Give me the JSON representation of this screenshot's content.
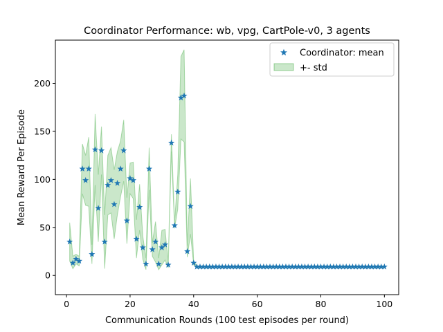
{
  "chart_data": {
    "type": "line",
    "title": "Coordinator Performance: wb, vpg, CartPole-v0, 3 agents",
    "xlabel": "Communication Rounds (100 test episodes per round)",
    "ylabel": "Mean Reward Per Episode",
    "xlim": [
      -3.5,
      104.5
    ],
    "ylim": [
      -20,
      245
    ],
    "x_ticks": [
      0,
      20,
      40,
      60,
      80,
      100
    ],
    "y_ticks": [
      0,
      50,
      100,
      150,
      200
    ],
    "legend_position": "top-right",
    "grid": false,
    "legend": {
      "mean_label": "Coordinator: mean",
      "std_label": "+- std"
    },
    "colors": {
      "mean": "#1f77b4",
      "band_fill": "#2ca02c",
      "band_edge": "#2ca02c"
    },
    "x": [
      1,
      2,
      3,
      4,
      5,
      6,
      7,
      8,
      9,
      10,
      11,
      12,
      13,
      14,
      15,
      16,
      17,
      18,
      19,
      20,
      21,
      22,
      23,
      24,
      25,
      26,
      27,
      28,
      29,
      30,
      31,
      32,
      33,
      34,
      35,
      36,
      37,
      38,
      39,
      40,
      41,
      42,
      43,
      44,
      45,
      46,
      47,
      48,
      49,
      50,
      51,
      52,
      53,
      54,
      55,
      56,
      57,
      58,
      59,
      60,
      61,
      62,
      63,
      64,
      65,
      66,
      67,
      68,
      69,
      70,
      71,
      72,
      73,
      74,
      75,
      76,
      77,
      78,
      79,
      80,
      81,
      82,
      83,
      84,
      85,
      86,
      87,
      88,
      89,
      90,
      91,
      92,
      93,
      94,
      95,
      96,
      97,
      98,
      99,
      100
    ],
    "series": [
      {
        "name": "Coordinator: mean",
        "values": [
          35,
          13,
          17,
          15,
          111,
          99,
          111,
          22,
          131,
          70,
          130,
          35,
          94,
          99,
          74,
          96,
          111,
          130,
          57,
          101,
          99,
          38,
          71,
          29,
          12,
          111,
          27,
          35,
          12,
          29,
          32,
          11,
          138,
          52,
          87,
          185,
          187,
          25,
          72,
          13,
          9,
          9,
          9,
          9,
          9,
          9,
          9,
          9,
          9,
          9,
          9,
          9,
          9,
          9,
          9,
          9,
          9,
          9,
          9,
          9,
          9,
          9,
          9,
          9,
          9,
          9,
          9,
          9,
          9,
          9,
          9,
          9,
          9,
          9,
          9,
          9,
          9,
          9,
          9,
          9,
          9,
          9,
          9,
          9,
          9,
          9,
          9,
          9,
          9,
          9,
          9,
          9,
          9,
          9,
          9,
          9,
          9,
          9,
          9,
          9
        ]
      },
      {
        "name": "+- std",
        "upper": [
          55,
          20,
          22,
          20,
          137,
          125,
          144,
          32,
          168,
          105,
          155,
          63,
          125,
          133,
          110,
          129,
          140,
          162,
          81,
          117,
          118,
          58,
          95,
          41,
          18,
          133,
          34,
          56,
          18,
          47,
          48,
          14,
          147,
          55,
          105,
          228,
          235,
          31,
          101,
          15,
          10,
          10,
          10,
          10,
          10,
          10,
          10,
          10,
          10,
          10,
          10,
          10,
          10,
          10,
          10,
          10,
          10,
          10,
          10,
          10,
          10,
          10,
          10,
          10,
          10,
          10,
          10,
          10,
          10,
          10,
          10,
          10,
          10,
          10,
          10,
          10,
          10,
          10,
          10,
          10,
          10,
          10,
          10,
          10,
          10,
          10,
          10,
          10,
          10,
          10,
          10,
          10,
          10,
          10,
          10,
          10,
          10,
          10,
          10,
          10
        ],
        "lower": [
          15,
          7,
          12,
          10,
          85,
          73,
          72,
          12,
          94,
          35,
          105,
          7,
          63,
          65,
          38,
          63,
          82,
          98,
          33,
          85,
          80,
          18,
          47,
          17,
          6,
          89,
          20,
          14,
          6,
          11,
          16,
          8,
          129,
          49,
          69,
          142,
          139,
          19,
          43,
          11,
          8,
          8,
          8,
          8,
          8,
          8,
          8,
          8,
          8,
          8,
          8,
          8,
          8,
          8,
          8,
          8,
          8,
          8,
          8,
          8,
          8,
          8,
          8,
          8,
          8,
          8,
          8,
          8,
          8,
          8,
          8,
          8,
          8,
          8,
          8,
          8,
          8,
          8,
          8,
          8,
          8,
          8,
          8,
          8,
          8,
          8,
          8,
          8,
          8,
          8,
          8,
          8,
          8,
          8,
          8,
          8,
          8,
          8,
          8,
          8
        ]
      }
    ]
  }
}
